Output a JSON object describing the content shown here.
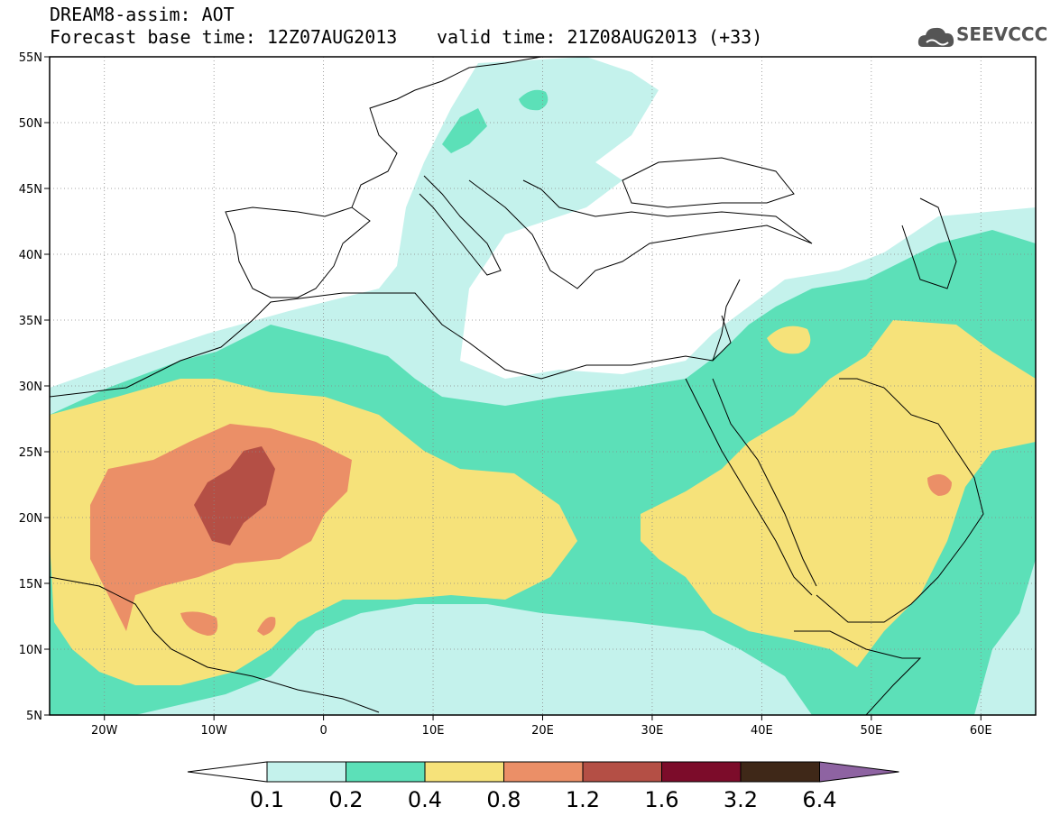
{
  "header": {
    "model_title": "DREAM8-assim: AOT",
    "base_time": "Forecast base time: 12Z07AUG2013",
    "valid_time": "valid time: 21Z08AUG2013 (+33)"
  },
  "logo": {
    "text": "SEEVCCC",
    "icon": "cloud-icon",
    "color": "#555555"
  },
  "axes": {
    "lon_min": -25,
    "lon_max": 65,
    "lat_min": 5,
    "lat_max": 55,
    "lat_labels": [
      "55N",
      "50N",
      "45N",
      "40N",
      "35N",
      "30N",
      "25N",
      "20N",
      "15N",
      "10N",
      "5N"
    ],
    "lat_values": [
      55,
      50,
      45,
      40,
      35,
      30,
      25,
      20,
      15,
      10,
      5
    ],
    "lon_labels": [
      "20W",
      "10W",
      "0",
      "10E",
      "20E",
      "30E",
      "40E",
      "50E",
      "60E"
    ],
    "lon_values": [
      -20,
      -10,
      0,
      10,
      20,
      30,
      40,
      50,
      60
    ],
    "grid": true
  },
  "colorbar": {
    "labels": [
      "0.1",
      "0.2",
      "0.4",
      "0.8",
      "1.2",
      "1.6",
      "3.2",
      "6.4"
    ],
    "colors": [
      "#c4f2ec",
      "#5ce0b8",
      "#f6e27a",
      "#eb8f67",
      "#b44f45",
      "#7c0c2a",
      "#3f2818",
      "#8e63a2"
    ]
  },
  "fill_colors": {
    "c01": "#c4f2ec",
    "c02": "#5ce0b8",
    "c04": "#f6e27a",
    "c08": "#eb8f67",
    "c12": "#b44f45"
  }
}
